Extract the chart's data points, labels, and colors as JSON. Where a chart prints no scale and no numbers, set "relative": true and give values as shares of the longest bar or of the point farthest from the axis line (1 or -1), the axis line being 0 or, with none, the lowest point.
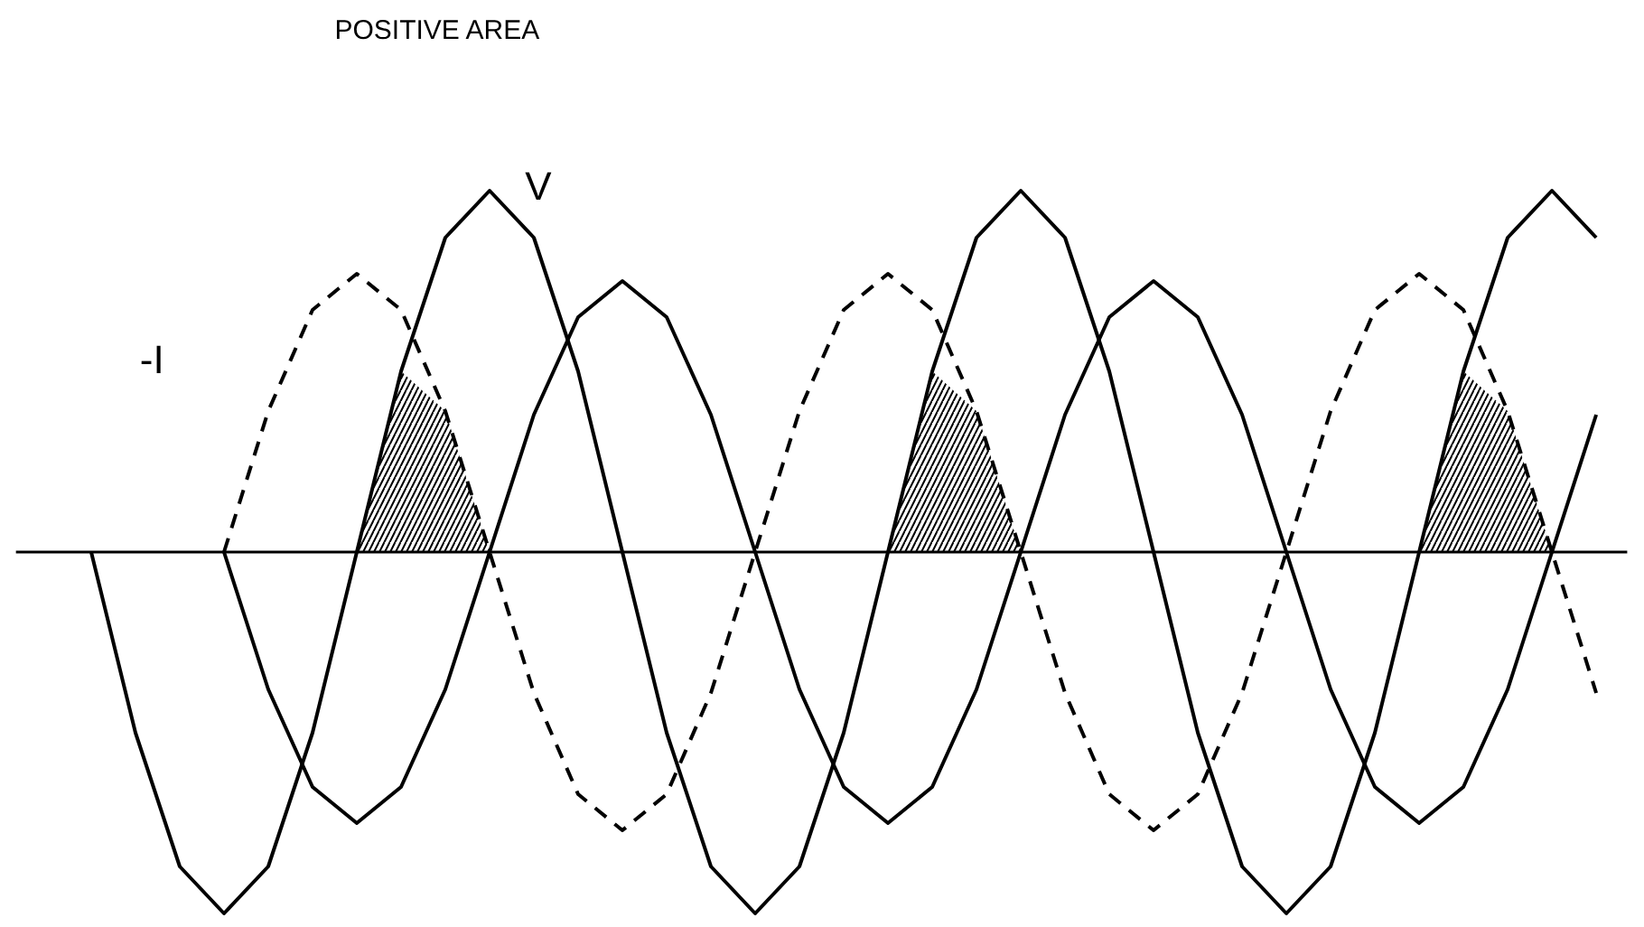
{
  "chart_data": {
    "type": "line",
    "relative": true,
    "marker": "none",
    "categories": [
      null,
      null,
      null,
      null,
      null,
      null,
      null,
      null,
      null,
      null,
      null,
      null,
      null,
      null,
      null,
      null,
      null,
      null,
      null,
      null,
      null,
      null,
      null,
      null,
      null,
      null,
      null,
      null,
      null,
      null,
      null,
      null,
      null,
      null,
      null
    ],
    "annotations": [
      "POSITIVE AREA"
    ],
    "series": [
      {
        "name": "V",
        "color": "#000000",
        "line_style": "solid",
        "values": [
          0,
          -0.5,
          -0.87,
          -1,
          -0.87,
          -0.5,
          0,
          0.5,
          0.87,
          1,
          0.87,
          0.5,
          0,
          -0.5,
          -0.87,
          -1,
          -0.87,
          -0.5,
          0,
          0.5,
          0.87,
          1,
          0.87,
          0.5,
          0,
          -0.5,
          -0.87,
          -1,
          -0.87,
          -0.5,
          0,
          0.5,
          0.87,
          1,
          0.87
        ]
      },
      {
        "name": "-I",
        "color": "#000000",
        "line_style": "dashed",
        "values": [
          null,
          null,
          null,
          0,
          0.39,
          0.67,
          0.77,
          0.67,
          0.39,
          0,
          -0.39,
          -0.67,
          -0.77,
          -0.67,
          -0.39,
          0,
          0.39,
          0.67,
          0.77,
          0.67,
          0.39,
          0,
          -0.39,
          -0.67,
          -0.77,
          -0.67,
          -0.39,
          0,
          0.39,
          0.67,
          0.77,
          0.67,
          0.39,
          0,
          -0.39
        ]
      },
      {
        "type": "area",
        "color": "#000000",
        "values": [
          null,
          null,
          null,
          null,
          null,
          null,
          0,
          0.5,
          0.39,
          0,
          null,
          null,
          null,
          null,
          null,
          null,
          null,
          null,
          null,
          null,
          null,
          null,
          null,
          null,
          null,
          null,
          null,
          null,
          null,
          null,
          null,
          null,
          null,
          null,
          null
        ]
      },
      {
        "type": "area",
        "color": "#000000",
        "values": [
          null,
          null,
          null,
          null,
          null,
          null,
          null,
          null,
          null,
          null,
          null,
          null,
          null,
          null,
          null,
          null,
          null,
          null,
          0,
          0.5,
          0.39,
          0,
          null,
          null,
          null,
          null,
          null,
          null,
          null,
          null,
          null,
          null,
          null,
          null,
          null
        ]
      },
      {
        "type": "area",
        "color": "#000000",
        "values": [
          null,
          null,
          null,
          null,
          null,
          null,
          null,
          null,
          null,
          null,
          null,
          null,
          null,
          null,
          null,
          null,
          null,
          null,
          null,
          null,
          null,
          null,
          null,
          null,
          null,
          null,
          null,
          null,
          null,
          null,
          0,
          0.5,
          0.39,
          0,
          null
        ]
      },
      {
        "color": "#000000",
        "line_style": "solid",
        "values": [
          null,
          null,
          null,
          0,
          -0.38,
          -0.65,
          -0.75,
          -0.65,
          -0.38,
          0,
          0.38,
          0.65,
          0.75,
          0.65,
          0.38,
          0,
          -0.38,
          -0.65,
          -0.75,
          -0.65,
          -0.38,
          0,
          0.38,
          0.65,
          0.75,
          0.65,
          0.38,
          0,
          -0.38,
          -0.65,
          -0.75,
          -0.65,
          -0.38,
          0,
          0.38
        ]
      }
    ]
  }
}
